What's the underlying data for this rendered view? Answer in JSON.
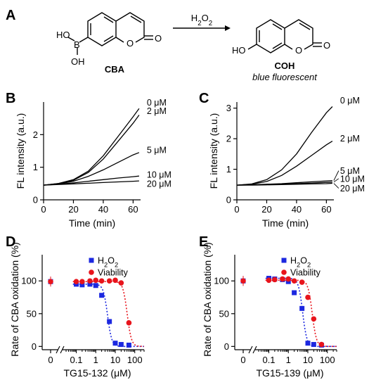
{
  "panels": {
    "a": {
      "letter": "A",
      "reactant_name": "CBA",
      "reagent": "H2O2",
      "product_name": "COH",
      "product_note": "blue fluorescent",
      "atoms": {
        "ho": "HO",
        "b": "B",
        "oh_boron": "OH",
        "ho_product": "HO",
        "o": "O"
      }
    },
    "b": {
      "letter": "B"
    },
    "c": {
      "letter": "C"
    },
    "d": {
      "letter": "D"
    },
    "e": {
      "letter": "E"
    }
  },
  "chart_data": [
    {
      "id": "B",
      "type": "line",
      "xlabel": "Time (min)",
      "ylabel": "FL intensity (a.u.)",
      "xlim": [
        0,
        65
      ],
      "ylim": [
        0,
        3
      ],
      "xticks": [
        0,
        20,
        40,
        60
      ],
      "yticks": [
        0,
        1,
        2
      ],
      "x": [
        0,
        10,
        20,
        30,
        40,
        50,
        60,
        64
      ],
      "series": [
        {
          "name": "0 μM",
          "values": [
            0.45,
            0.5,
            0.62,
            0.88,
            1.35,
            1.95,
            2.55,
            2.8
          ]
        },
        {
          "name": "2 μM",
          "values": [
            0.45,
            0.5,
            0.6,
            0.84,
            1.25,
            1.8,
            2.35,
            2.6
          ]
        },
        {
          "name": "5 μM",
          "values": [
            0.45,
            0.49,
            0.57,
            0.72,
            0.92,
            1.15,
            1.38,
            1.45
          ]
        },
        {
          "name": "10 μM",
          "values": [
            0.45,
            0.48,
            0.52,
            0.57,
            0.62,
            0.67,
            0.71,
            0.73
          ]
        },
        {
          "name": "20 μM",
          "values": [
            0.45,
            0.47,
            0.49,
            0.51,
            0.53,
            0.55,
            0.57,
            0.58
          ]
        }
      ]
    },
    {
      "id": "C",
      "type": "line",
      "xlabel": "Time (min)",
      "ylabel": "FL intensity (a.u.)",
      "xlim": [
        0,
        65
      ],
      "ylim": [
        0,
        3.2
      ],
      "xticks": [
        0,
        20,
        40,
        60
      ],
      "yticks": [
        0,
        1,
        2,
        3
      ],
      "x": [
        0,
        10,
        20,
        30,
        40,
        50,
        60,
        64
      ],
      "series": [
        {
          "name": "0 μM",
          "values": [
            0.48,
            0.52,
            0.66,
            0.98,
            1.5,
            2.2,
            2.85,
            3.05
          ]
        },
        {
          "name": "2 μM",
          "values": [
            0.48,
            0.51,
            0.6,
            0.8,
            1.1,
            1.45,
            1.8,
            1.92
          ]
        },
        {
          "name": "5 μM",
          "values": [
            0.48,
            0.49,
            0.51,
            0.53,
            0.56,
            0.59,
            0.62,
            0.63
          ]
        },
        {
          "name": "10 μM",
          "values": [
            0.48,
            0.49,
            0.5,
            0.51,
            0.53,
            0.55,
            0.57,
            0.58
          ]
        },
        {
          "name": "20 μM",
          "values": [
            0.48,
            0.48,
            0.49,
            0.5,
            0.51,
            0.52,
            0.53,
            0.54
          ]
        }
      ]
    },
    {
      "id": "D",
      "type": "scatter",
      "xscale": "log",
      "xlabel": "TG15-132 (μM)",
      "ylabel": "Rate of CBA oxidation (%)",
      "xlim": [
        0.03,
        300
      ],
      "ylim": [
        -5,
        140
      ],
      "xticks": [
        0.1,
        1,
        10,
        100
      ],
      "xtick_labels": [
        "0.1",
        "1",
        "10",
        "100"
      ],
      "zero_tick_label": "0",
      "yticks": [
        0,
        50,
        100
      ],
      "legend": {
        "placement": "top-right",
        "entries": [
          "H2O2",
          "Viability"
        ]
      },
      "series": [
        {
          "name": "H2O2",
          "color": "#1c28e0",
          "marker": "square",
          "zero_point": 99,
          "x": [
            0.1,
            0.2,
            0.5,
            1,
            2,
            5,
            10,
            20,
            50
          ],
          "values": [
            95,
            94,
            95,
            93,
            78,
            38,
            5,
            3,
            2
          ]
        },
        {
          "name": "Viability",
          "color": "#e8141c",
          "marker": "circle",
          "zero_point": 99,
          "x": [
            0.1,
            0.2,
            0.5,
            1,
            2,
            5,
            10,
            20,
            50
          ],
          "values": [
            99,
            99,
            100,
            101,
            100,
            100,
            101,
            97,
            36
          ]
        }
      ]
    },
    {
      "id": "E",
      "type": "scatter",
      "xscale": "log",
      "xlabel": "TG15-139 (μM)",
      "ylabel": "Rate of CBA oxidation (%)",
      "xlim": [
        0.03,
        300
      ],
      "ylim": [
        -5,
        140
      ],
      "xticks": [
        0.1,
        1,
        10,
        100
      ],
      "xtick_labels": [
        "0.1",
        "1",
        "10",
        "100"
      ],
      "zero_tick_label": "0",
      "yticks": [
        0,
        50,
        100
      ],
      "legend": {
        "placement": "top-right",
        "entries": [
          "H2O2",
          "Viability"
        ]
      },
      "series": [
        {
          "name": "H2O2",
          "color": "#1c28e0",
          "marker": "square",
          "zero_point": 100,
          "x": [
            0.1,
            0.2,
            0.5,
            1,
            2,
            5,
            10,
            20,
            50
          ],
          "values": [
            104,
            103,
            102,
            99,
            82,
            58,
            5,
            3,
            2
          ]
        },
        {
          "name": "Viability",
          "color": "#e8141c",
          "marker": "circle",
          "zero_point": 100,
          "x": [
            0.1,
            0.2,
            0.5,
            1,
            2,
            5,
            10,
            20,
            50
          ],
          "values": [
            101,
            102,
            103,
            103,
            100,
            98,
            75,
            42,
            3
          ]
        }
      ]
    }
  ]
}
